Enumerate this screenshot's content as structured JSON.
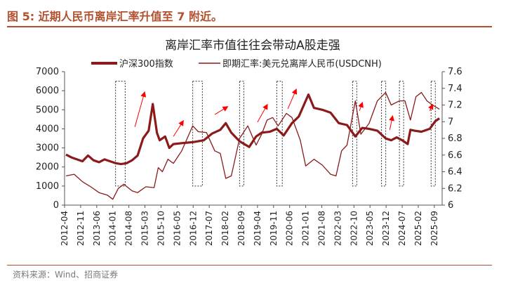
{
  "figure": {
    "label": "图 5:  近期人民币离岸汇率升值至 7 附近。",
    "source": "资料来源：Wind、招商证券"
  },
  "colors": {
    "accent": "#b2502e",
    "csi300": "#8b1a1a",
    "usdcnh": "#8b1a1a",
    "arrow": "#ff0000",
    "box": "#333333"
  },
  "chart_data": {
    "type": "line",
    "title": "离岸汇率市值往往会带动A股走强",
    "xlabel": "",
    "ylabel": "",
    "y2label": "",
    "ylim": [
      0,
      7000
    ],
    "y2lim": [
      6,
      7.6
    ],
    "grid": false,
    "legend": "top",
    "x_ticks": [
      "2012-04",
      "2012-11",
      "2013-06",
      "2014-01",
      "2014-08",
      "2015-03",
      "2015-10",
      "2016-05",
      "2016-12",
      "2017-07",
      "2018-02",
      "2018-09",
      "2019-04",
      "2019-11",
      "2020-06",
      "2021-01",
      "2021-08",
      "2022-03",
      "2022-10",
      "2023-05",
      "2023-12",
      "2024-07",
      "2025-02",
      "2025-09"
    ],
    "y_ticks": [
      "0",
      "1000",
      "2000",
      "3000",
      "4000",
      "5000",
      "6000",
      "7000"
    ],
    "y2_ticks": [
      "6",
      "6.2",
      "6.4",
      "6.6",
      "6.8",
      "7",
      "7.2",
      "7.4",
      "7.6"
    ],
    "series": [
      {
        "name": "沪深300指数",
        "axis": "left",
        "x": [
          2012.3,
          2012.5,
          2012.7,
          2012.9,
          2013.1,
          2013.3,
          2013.5,
          2013.7,
          2013.9,
          2014.1,
          2014.3,
          2014.5,
          2014.7,
          2014.9,
          2015.1,
          2015.3,
          2015.45,
          2015.6,
          2015.7,
          2015.9,
          2016.05,
          2016.2,
          2016.5,
          2016.9,
          2017.3,
          2017.6,
          2017.9,
          2018.1,
          2018.3,
          2018.6,
          2018.95,
          2019.2,
          2019.4,
          2019.7,
          2019.95,
          2020.2,
          2020.5,
          2020.75,
          2021.1,
          2021.3,
          2021.6,
          2021.9,
          2022.2,
          2022.5,
          2022.8,
          2023.05,
          2023.3,
          2023.6,
          2023.9,
          2024.1,
          2024.3,
          2024.5,
          2024.7,
          2024.8,
          2024.95,
          2025.2,
          2025.5,
          2025.7,
          2025.85
        ],
        "values": [
          2650,
          2500,
          2400,
          2300,
          2600,
          2350,
          2250,
          2400,
          2300,
          2200,
          2150,
          2200,
          2350,
          2600,
          3500,
          3900,
          5300,
          3800,
          3400,
          3600,
          3000,
          3200,
          3250,
          3300,
          3400,
          3750,
          3950,
          4300,
          3800,
          3350,
          3050,
          3600,
          3800,
          3850,
          4000,
          3650,
          4300,
          4650,
          5800,
          5100,
          5000,
          4850,
          4300,
          4200,
          3600,
          4050,
          4000,
          3900,
          3500,
          3400,
          3550,
          3400,
          3200,
          3950,
          3900,
          3850,
          4000,
          4400,
          4550
        ]
      },
      {
        "name": "即期汇率:美元兑离岸人民币(USDCNH)",
        "axis": "right",
        "x": [
          2012.3,
          2012.6,
          2012.9,
          2013.2,
          2013.5,
          2013.8,
          2014.0,
          2014.2,
          2014.4,
          2014.7,
          2014.9,
          2015.2,
          2015.5,
          2015.65,
          2015.8,
          2016.0,
          2016.2,
          2016.5,
          2016.9,
          2017.1,
          2017.4,
          2017.7,
          2017.9,
          2018.1,
          2018.3,
          2018.6,
          2018.9,
          2019.2,
          2019.4,
          2019.6,
          2019.8,
          2020.0,
          2020.3,
          2020.5,
          2020.8,
          2021.0,
          2021.3,
          2021.6,
          2021.9,
          2022.1,
          2022.3,
          2022.5,
          2022.8,
          2023.0,
          2023.3,
          2023.6,
          2023.9,
          2024.1,
          2024.4,
          2024.6,
          2024.8,
          2025.0,
          2025.2,
          2025.4,
          2025.6,
          2025.85
        ],
        "values": [
          6.35,
          6.37,
          6.28,
          6.22,
          6.15,
          6.12,
          6.07,
          6.2,
          6.25,
          6.17,
          6.15,
          6.22,
          6.21,
          6.45,
          6.4,
          6.55,
          6.5,
          6.65,
          6.95,
          6.88,
          6.87,
          6.65,
          6.62,
          6.32,
          6.35,
          6.8,
          6.95,
          6.72,
          6.85,
          7.02,
          7.05,
          6.95,
          7.1,
          7.05,
          6.78,
          6.47,
          6.55,
          6.48,
          6.37,
          6.35,
          6.65,
          6.72,
          7.25,
          6.85,
          6.98,
          7.25,
          7.35,
          7.2,
          7.25,
          7.25,
          7.02,
          7.3,
          7.35,
          7.25,
          7.2,
          7.15
        ]
      }
    ],
    "highlight_periods": [
      [
        2014.1,
        2014.45
      ],
      [
        2016.9,
        2017.25
      ],
      [
        2018.6,
        2018.75
      ],
      [
        2019.95,
        2020.15
      ],
      [
        2022.7,
        2022.8
      ],
      [
        2023.75,
        2023.85
      ],
      [
        2024.4,
        2024.55
      ],
      [
        2025.55,
        2025.65
      ]
    ],
    "arrows": [
      {
        "from": [
          2014.8,
          4100
        ],
        "to": [
          2015.15,
          5900
        ]
      },
      {
        "from": [
          2016.2,
          3600
        ],
        "to": [
          2016.55,
          4400
        ]
      },
      {
        "from": [
          2017.7,
          4750
        ],
        "to": [
          2018.15,
          5150
        ]
      },
      {
        "from": [
          2019.25,
          4350
        ],
        "to": [
          2019.6,
          5250
        ]
      },
      {
        "from": [
          2020.35,
          5050
        ],
        "to": [
          2020.65,
          6050
        ]
      },
      {
        "from": [
          2022.95,
          4950
        ],
        "to": [
          2023.05,
          5350
        ]
      },
      {
        "from": [
          2024.05,
          3950
        ],
        "to": [
          2024.15,
          4650
        ]
      },
      {
        "from": [
          2025.5,
          4950
        ],
        "to": [
          2025.6,
          5250
        ]
      }
    ]
  }
}
